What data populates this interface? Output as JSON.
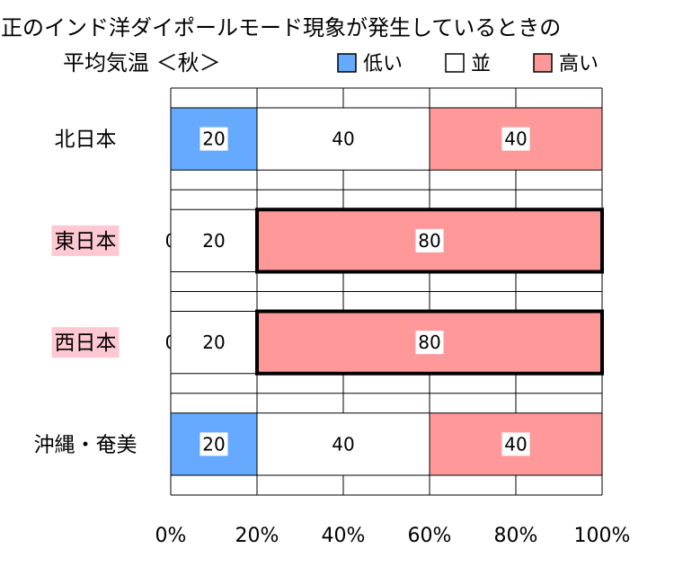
{
  "chart_data": {
    "type": "bar",
    "stacked": "percent",
    "orientation": "horizontal",
    "title_line1": "正のインド洋ダイポールモード現象が発生しているときの",
    "title_line2": "平均気温 ＜秋＞",
    "categories": [
      "北日本",
      "東日本",
      "西日本",
      "沖縄・奄美"
    ],
    "highlighted_categories": [
      "東日本",
      "西日本"
    ],
    "series": [
      {
        "name": "低い",
        "values": [
          20,
          0,
          0,
          20
        ],
        "color": "#66AAFF"
      },
      {
        "name": "並",
        "values": [
          40,
          20,
          20,
          40
        ],
        "color": "#FFFFFF"
      },
      {
        "name": "高い",
        "values": [
          40,
          80,
          80,
          40
        ],
        "color": "#FF9999"
      }
    ],
    "emphasized_cells": [
      {
        "category": "東日本",
        "series": "高い"
      },
      {
        "category": "西日本",
        "series": "高い"
      }
    ],
    "x_ticks": [
      "0%",
      "20%",
      "40%",
      "60%",
      "80%",
      "100%"
    ],
    "xlim": [
      0,
      100
    ],
    "grid": true,
    "legend_position": "top-right",
    "highlight_color": "#FFC8D2"
  }
}
